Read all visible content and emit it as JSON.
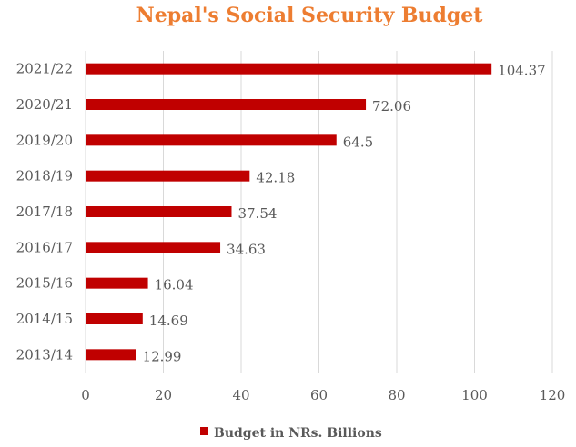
{
  "chart_data": {
    "type": "bar",
    "orientation": "horizontal",
    "title": "Nepal's Social Security Budget",
    "categories": [
      "2021/22",
      "2020/21",
      "2019/20",
      "2018/19",
      "2017/18",
      "2016/17",
      "2015/16",
      "2014/15",
      "2013/14"
    ],
    "series": [
      {
        "name": "Budget in NRs. Billions",
        "values": [
          104.37,
          72.06,
          64.5,
          42.18,
          37.54,
          34.63,
          16.04,
          14.69,
          12.99
        ],
        "labels": [
          "104.37",
          "72.06",
          "64.5",
          "42.18",
          "37.54",
          "34.63",
          "16.04",
          "14.69",
          "12.99"
        ],
        "color": "#C00000"
      }
    ],
    "xlim": [
      0,
      120
    ],
    "xticks": [
      "0",
      "20",
      "40",
      "60",
      "80",
      "100",
      "120"
    ],
    "grid": "vertical",
    "legend": "bottom",
    "title_color": "#ED7D31"
  }
}
